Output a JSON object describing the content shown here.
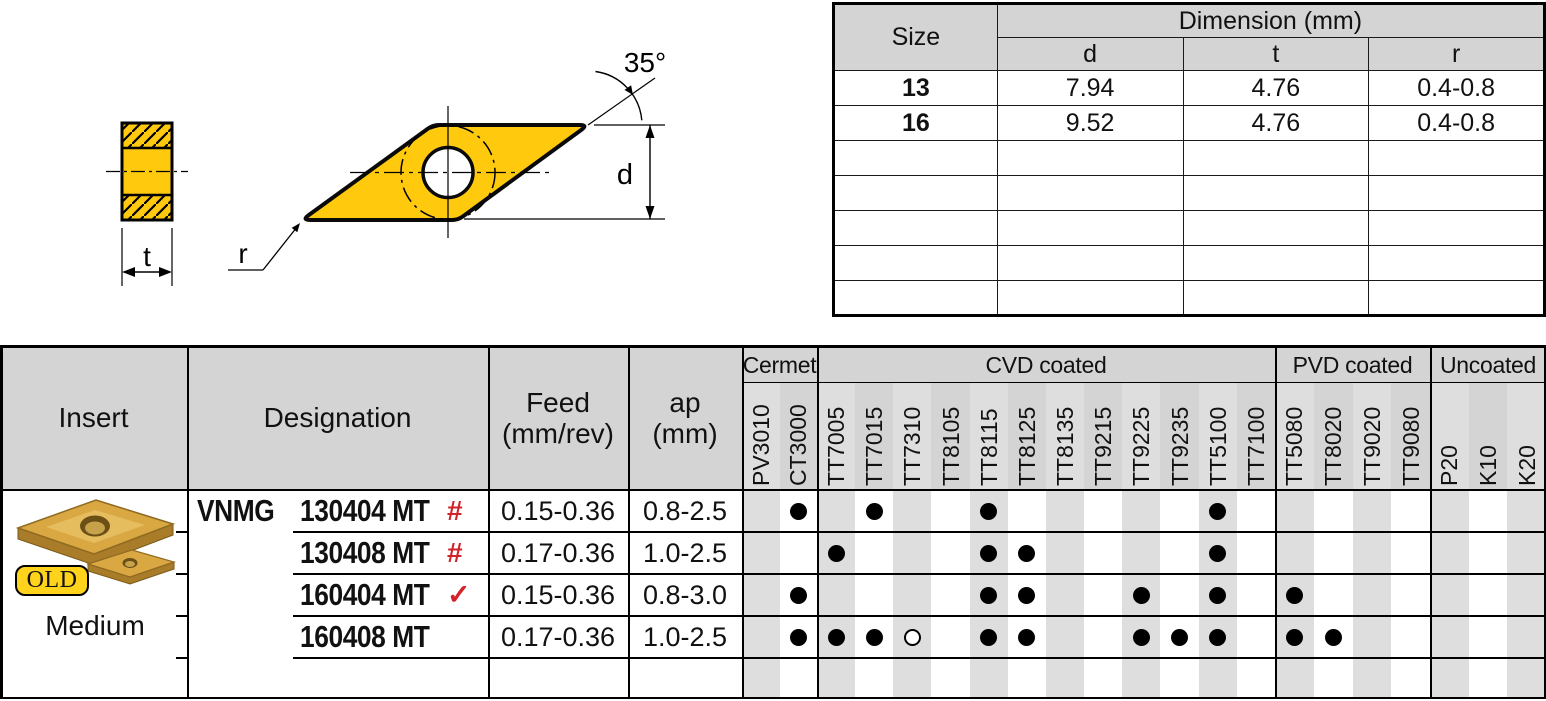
{
  "palette": {
    "header_gray": "#d4d4d4",
    "stripe_gray": "#dedede",
    "marker_red": "#d2232a",
    "drawing_yellow": "#ffc90e",
    "badge_yellow": "#ffd21c",
    "photo_gold": "#d9a843"
  },
  "drawing": {
    "angle_label": "35°",
    "diameter_label": "d",
    "thickness_label": "t",
    "radius_label": "r"
  },
  "dimension_table": {
    "size_header": "Size",
    "group_header": "Dimension (mm)",
    "columns": [
      "d",
      "t",
      "r"
    ],
    "rows": [
      {
        "size": "13",
        "values": [
          "7.94",
          "4.76",
          "0.4-0.8"
        ]
      },
      {
        "size": "16",
        "values": [
          "9.52",
          "4.76",
          "0.4-0.8"
        ]
      }
    ],
    "empty_rows": 5
  },
  "insert_table": {
    "insert_header": "Insert",
    "designation_header": "Designation",
    "feed_header": "Feed",
    "feed_unit": "(mm/rev)",
    "ap_header": "ap",
    "ap_unit": "(mm)",
    "series_prefix": "VNMG",
    "insert_badge": "OLD",
    "insert_label": "Medium",
    "grade_groups": [
      {
        "name": "Cermet",
        "grades": [
          "PV3010",
          "CT3000"
        ]
      },
      {
        "name": "CVD coated",
        "grades": [
          "TT7005",
          "TT7015",
          "TT7310",
          "TT8105",
          "TT8115",
          "TT8125",
          "TT8135",
          "TT9215",
          "TT9225",
          "TT9235",
          "TT5100",
          "TT7100"
        ]
      },
      {
        "name": "PVD coated",
        "grades": [
          "TT5080",
          "TT8020",
          "TT9020",
          "TT9080"
        ]
      },
      {
        "name": "Uncoated",
        "grades": [
          "P20",
          "K10",
          "K20"
        ]
      }
    ],
    "rows": [
      {
        "designation": "130404 MT",
        "marker": "#",
        "feed": "0.15-0.36",
        "ap": "0.8-2.5",
        "filled": [
          "CT3000",
          "TT7015",
          "TT8115",
          "TT5100"
        ],
        "open": []
      },
      {
        "designation": "130408 MT",
        "marker": "#",
        "feed": "0.17-0.36",
        "ap": "1.0-2.5",
        "filled": [
          "TT7005",
          "TT8115",
          "TT8125",
          "TT5100"
        ],
        "open": []
      },
      {
        "designation": "160404 MT",
        "marker": "✓",
        "feed": "0.15-0.36",
        "ap": "0.8-3.0",
        "filled": [
          "CT3000",
          "TT8115",
          "TT8125",
          "TT9225",
          "TT5100",
          "TT5080"
        ],
        "open": []
      },
      {
        "designation": "160408 MT",
        "marker": "",
        "feed": "0.17-0.36",
        "ap": "1.0-2.5",
        "filled": [
          "CT3000",
          "TT7005",
          "TT7015",
          "TT8115",
          "TT8125",
          "TT9225",
          "TT9235",
          "TT5100",
          "TT5080",
          "TT8020"
        ],
        "open": [
          "TT7310"
        ]
      }
    ],
    "empty_rows": 1
  }
}
